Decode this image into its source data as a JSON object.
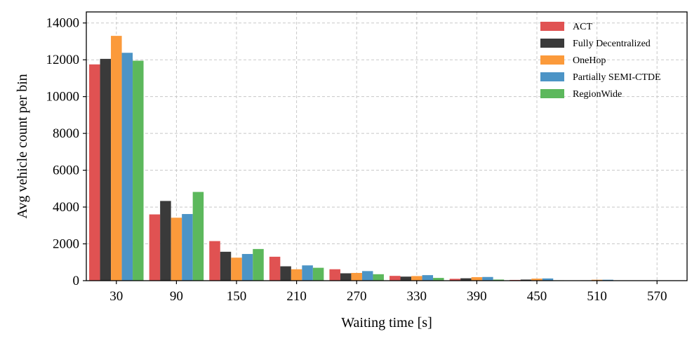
{
  "chart_data": {
    "type": "bar",
    "xlabel": "Waiting time [s]",
    "ylabel": "Avg vehicle count per bin",
    "categories": [
      "30",
      "90",
      "150",
      "210",
      "270",
      "330",
      "390",
      "450",
      "510",
      "570"
    ],
    "ylim": [
      0,
      14600
    ],
    "yticks": [
      "0",
      "2000",
      "4000",
      "6000",
      "8000",
      "10000",
      "12000",
      "14000"
    ],
    "ytick_values": [
      0,
      2000,
      4000,
      6000,
      8000,
      10000,
      12000,
      14000
    ],
    "grid": true,
    "legend_position": "top-right",
    "series": [
      {
        "name": "ACT",
        "color": "#e05252",
        "values": [
          11750,
          3600,
          2150,
          1300,
          620,
          260,
          100,
          40,
          15,
          5
        ]
      },
      {
        "name": "Fully Decentralized",
        "color": "#3a3a3a",
        "values": [
          12050,
          4330,
          1570,
          780,
          400,
          220,
          130,
          60,
          20,
          5
        ]
      },
      {
        "name": "OneHop",
        "color": "#fb9a3b",
        "values": [
          13300,
          3420,
          1250,
          620,
          420,
          250,
          190,
          110,
          50,
          10
        ]
      },
      {
        "name": "Partially SEMI-CTDE",
        "color": "#4c94c6",
        "values": [
          12380,
          3620,
          1450,
          830,
          520,
          300,
          200,
          120,
          50,
          10
        ]
      },
      {
        "name": "RegionWide",
        "color": "#5cb85c",
        "values": [
          11950,
          4820,
          1720,
          700,
          350,
          150,
          60,
          20,
          5,
          2
        ]
      }
    ]
  }
}
